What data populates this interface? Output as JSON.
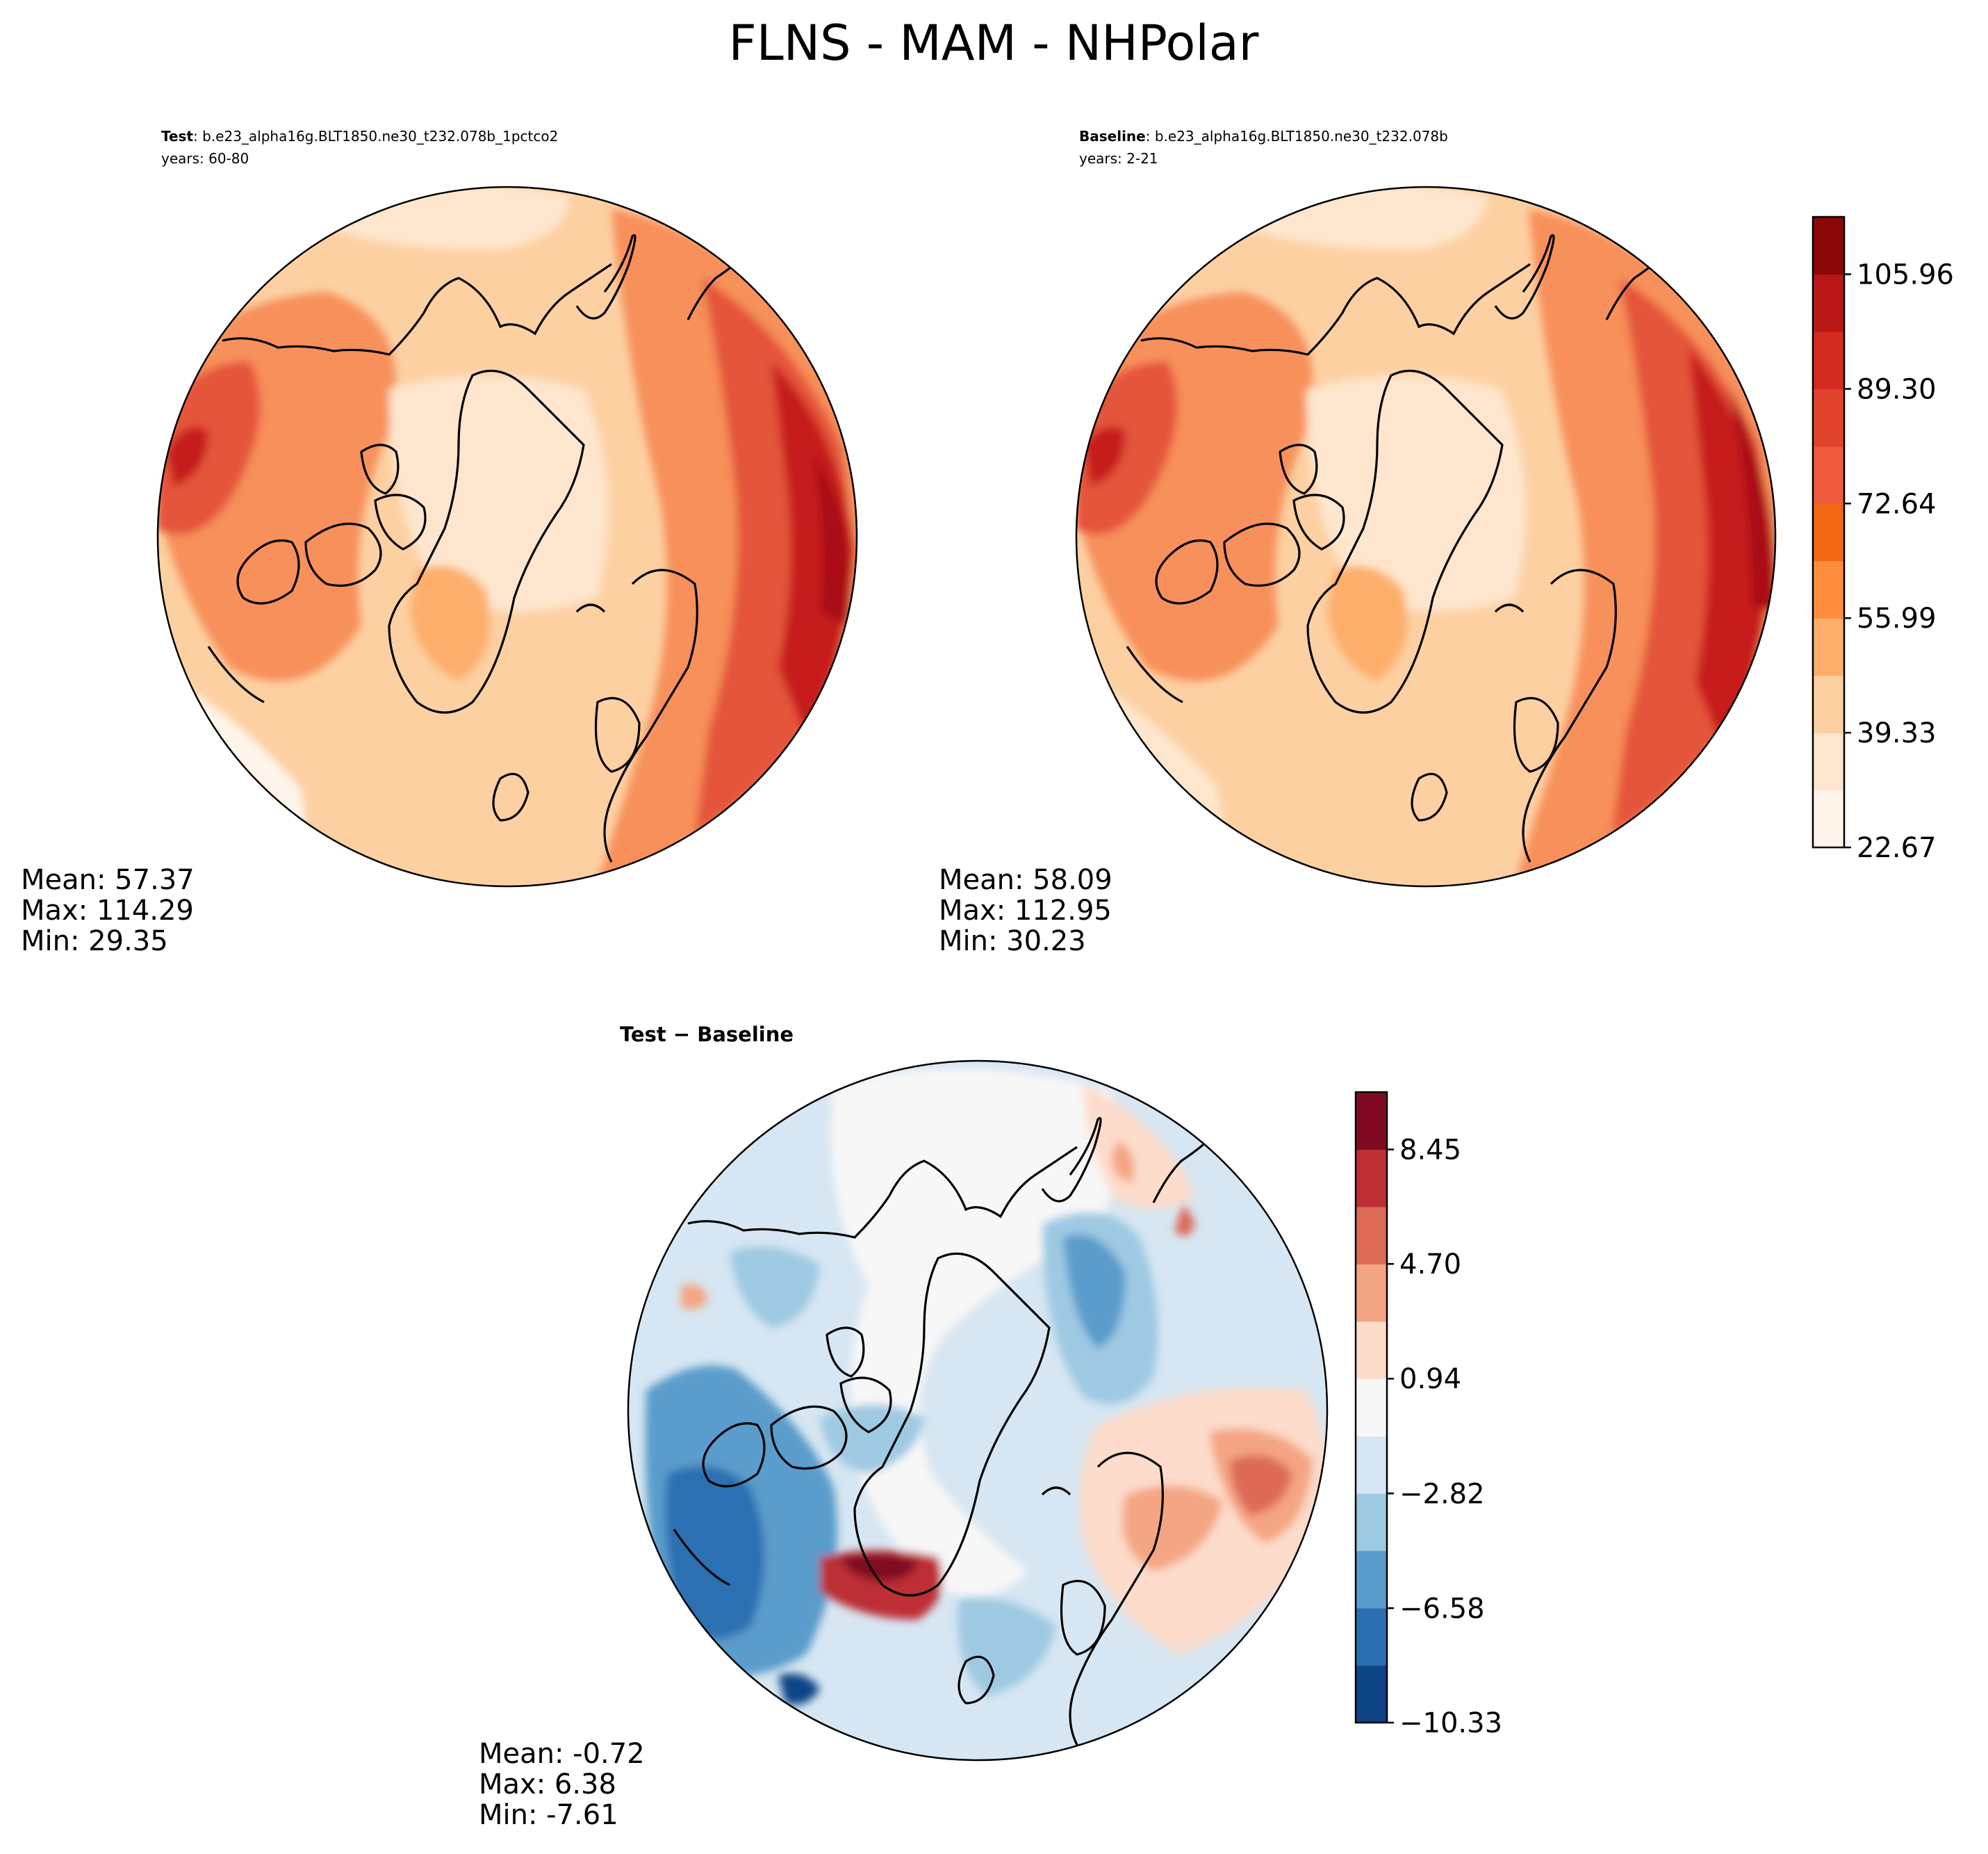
{
  "figure": {
    "title": "FLNS - MAM - NHPolar"
  },
  "panels": [
    {
      "id": "test",
      "label_bold": "Test",
      "label_rest": ": b.e23_alpha16g.BLT1850.ne30_t232.078b_1pctco2",
      "years": "years: 60-80",
      "stats": {
        "mean": "Mean: 57.37",
        "max": "Max: 114.29",
        "min": "Min: 29.35"
      }
    },
    {
      "id": "baseline",
      "label_bold": "Baseline",
      "label_rest": ": b.e23_alpha16g.BLT1850.ne30_t232.078b",
      "years": "years: 2-21",
      "stats": {
        "mean": "Mean: 58.09",
        "max": "Max: 112.95",
        "min": "Min: 30.23"
      }
    },
    {
      "id": "diff",
      "label_bold": "Test − Baseline",
      "stats": {
        "mean": "Mean: -0.72",
        "max": "Max:  6.38",
        "min": "Min: -7.61"
      }
    }
  ],
  "chart_data": [
    {
      "type": "heatmap",
      "projection": "north-polar-stereographic",
      "panel": "test",
      "colormap": "Reds",
      "colorbar": {
        "range": [
          22.67,
          114.29
        ],
        "ticks": [
          "22.67",
          "39.33",
          "55.99",
          "72.64",
          "89.30",
          "105.96"
        ],
        "levels": 11,
        "colors": [
          "#fff5eb",
          "#fee6ce",
          "#fdd0a2",
          "#fdae6b",
          "#fd8d3c",
          "#f16913",
          "#ef5a3c",
          "#e2432c",
          "#d42a20",
          "#b81716",
          "#8a0808"
        ]
      },
      "mean": 57.37,
      "max": 114.29,
      "min": 29.35
    },
    {
      "type": "heatmap",
      "projection": "north-polar-stereographic",
      "panel": "baseline",
      "colormap": "Reds",
      "mean": 58.09,
      "max": 112.95,
      "min": 30.23
    },
    {
      "type": "heatmap",
      "projection": "north-polar-stereographic",
      "panel": "diff",
      "colormap": "RdBu_r",
      "colorbar": {
        "range": [
          -10.33,
          10.33
        ],
        "ticks": [
          "−10.33",
          "−6.58",
          "−2.82",
          "0.94",
          "4.70",
          "8.45"
        ],
        "levels": 11,
        "colors": [
          "#0d4486",
          "#2b6fb2",
          "#5a9ccb",
          "#9ec9e2",
          "#d6e6f2",
          "#f7f7f7",
          "#fddccb",
          "#f4a583",
          "#dd6b56",
          "#bd2e35",
          "#800a22"
        ]
      },
      "mean": -0.72,
      "max": 6.38,
      "min": -7.61
    }
  ],
  "colors": {
    "reds": [
      "#fff5eb",
      "#fee6ce",
      "#fdd0a2",
      "#fdae6b",
      "#f7905a",
      "#ef7048",
      "#e4553a",
      "#d83a2a",
      "#c61f1b",
      "#ab0f12",
      "#8a0808"
    ],
    "rdbu": [
      "#0d4486",
      "#2b6fb2",
      "#5a9ccb",
      "#9ec9e2",
      "#d6e6f2",
      "#f7f7f7",
      "#fddccb",
      "#f4a583",
      "#dd6b56",
      "#bd2e35",
      "#800a22"
    ]
  }
}
